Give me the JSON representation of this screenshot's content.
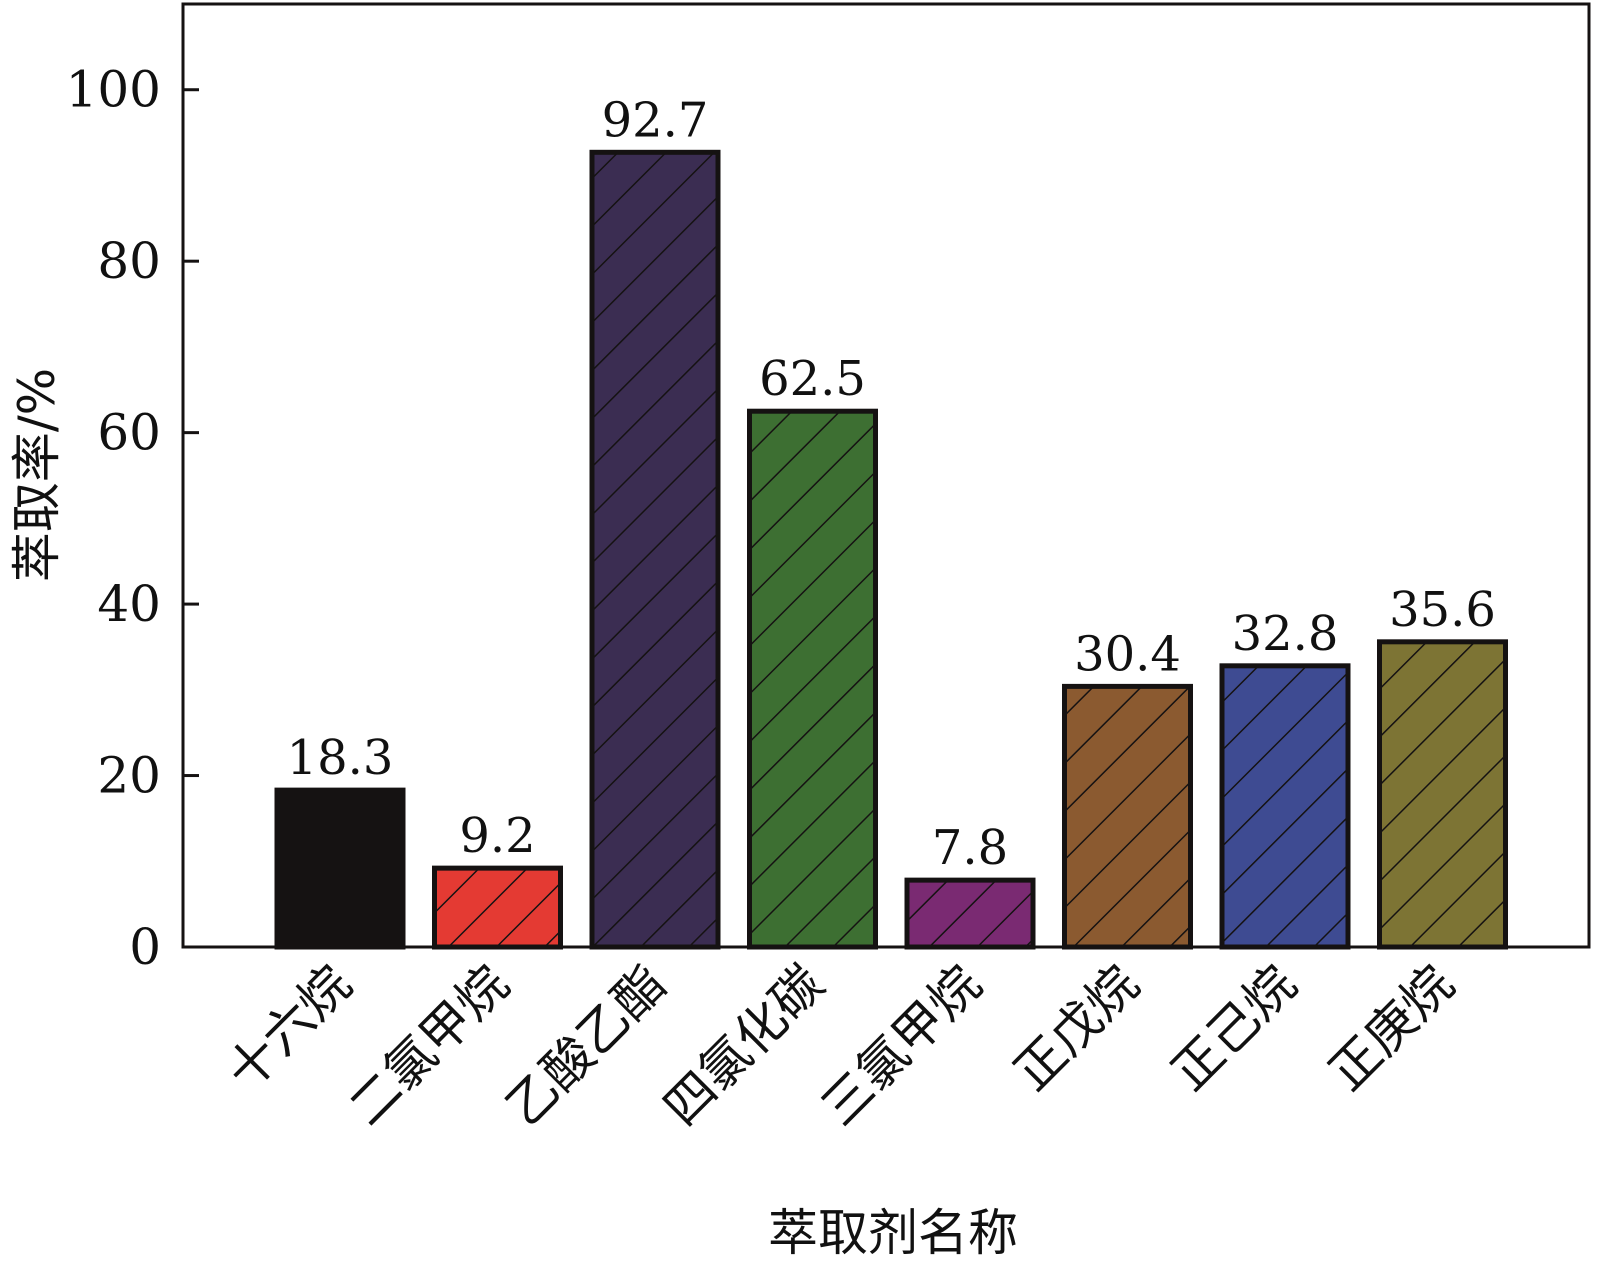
{
  "chart_data": {
    "type": "bar",
    "xlabel": "萃取剂名称",
    "ylabel": "萃取率/%",
    "ylim": [
      0,
      110
    ],
    "yticks": [
      0,
      20,
      40,
      60,
      80,
      100
    ],
    "grid": false,
    "legend": "none",
    "categories": [
      "十六烷",
      "二氯甲烷",
      "乙酸乙酯",
      "四氯化碳",
      "三氯甲烷",
      "正戊烷",
      "正己烷",
      "正庚烷"
    ],
    "values": [
      18.3,
      9.2,
      92.7,
      62.5,
      7.8,
      30.4,
      32.8,
      35.6
    ],
    "data_labels": [
      "18.3",
      "9.2",
      "92.7",
      "62.5",
      "7.8",
      "30.4",
      "32.8",
      "35.6"
    ],
    "colors": [
      "#151212",
      "#e43a33",
      "#3b2d52",
      "#3d6f32",
      "#7a2a72",
      "#8b5a30",
      "#3e4b92",
      "#7d7434"
    ],
    "hatched": [
      false,
      true,
      true,
      true,
      true,
      true,
      true,
      true
    ]
  }
}
